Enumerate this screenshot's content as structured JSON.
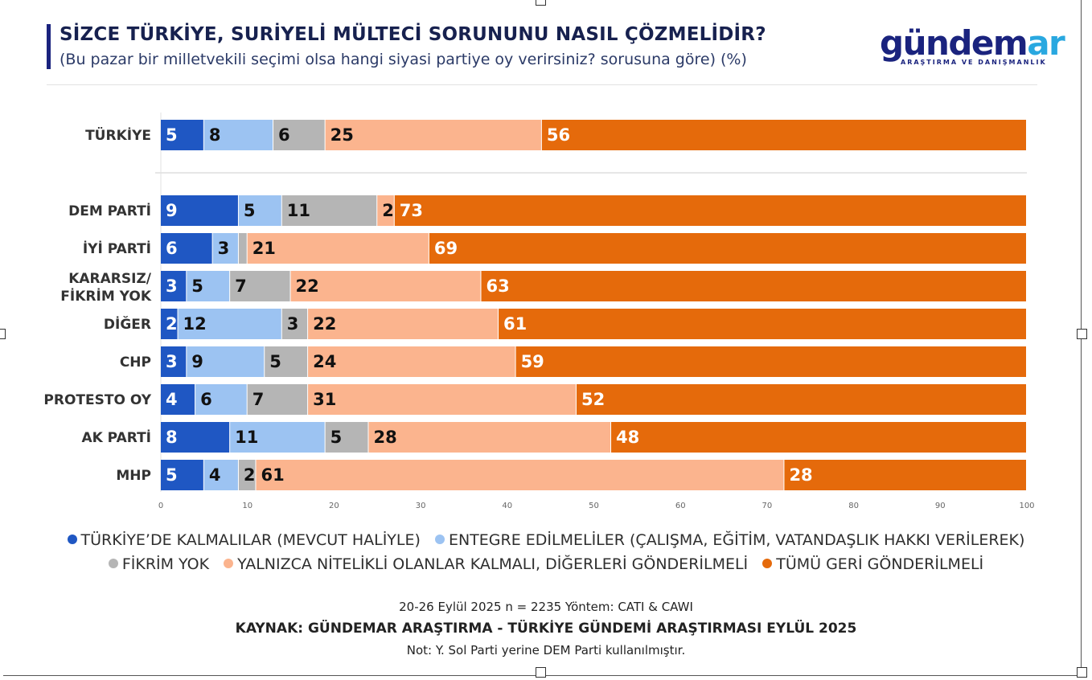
{
  "header": {
    "title": "SİZCE TÜRKİYE, SURİYELİ MÜLTECİ SORUNUNU NASIL ÇÖZMELİDİR?",
    "subtitle": "(Bu pazar bir milletvekili seçimi olsa hangi siyasi partiye oy verirsiniz? sorusuna göre) (%)"
  },
  "logo": {
    "word_part1": "gündem",
    "word_part2": "ar",
    "tagline": "ARAŞTIRMA VE DANIŞMANLIK"
  },
  "chart_data": {
    "type": "bar",
    "orientation": "horizontal",
    "stacked": true,
    "categories": [
      "TÜRKİYE",
      "DEM PARTİ",
      "İYİ PARTİ",
      "KARARSIZ/ FİKRİM YOK",
      "DİĞER",
      "CHP",
      "PROTESTO OY",
      "AK PARTİ",
      "MHP"
    ],
    "series": [
      {
        "name": "TÜRKİYE’DE KALMALILAR (MEVCUT HALİYLE)",
        "color": "#1f57c3",
        "label_color": "#ffffff",
        "values": [
          5,
          9,
          6,
          3,
          2,
          3,
          4,
          8,
          5
        ]
      },
      {
        "name": "ENTEGRE EDİLMELİLER (ÇALIŞMA, EĞİTİM, VATANDAŞLIK HAKKI VERİLEREK)",
        "color": "#9cc3f2",
        "label_color": "#111111",
        "values": [
          8,
          5,
          3,
          5,
          12,
          9,
          6,
          11,
          4
        ]
      },
      {
        "name": "FİKRİM YOK",
        "color": "#b5b5b5",
        "label_color": "#111111",
        "values": [
          6,
          11,
          1,
          7,
          3,
          5,
          7,
          5,
          2
        ]
      },
      {
        "name": "YALNIZCA NİTELİKLİ OLANLAR KALMALI, DİĞERLERİ GÖNDERİLMELİ",
        "color": "#fbb48e",
        "label_color": "#111111",
        "values": [
          25,
          2,
          21,
          22,
          22,
          24,
          31,
          28,
          61
        ]
      },
      {
        "name": "TÜMÜ GERİ GÖNDERİLMELİ",
        "color": "#e56a0b",
        "label_color": "#ffffff",
        "values": [
          56,
          73,
          69,
          63,
          61,
          59,
          52,
          48,
          28
        ]
      }
    ],
    "hidden_labels": [
      [
        2,
        2
      ]
    ],
    "x_ticks": [
      0,
      10,
      20,
      30,
      40,
      50,
      60,
      70,
      80,
      90,
      100
    ],
    "xlim": [
      0,
      100
    ],
    "xlabel": "",
    "ylabel": "",
    "legend_position": "bottom",
    "grid": false
  },
  "footer": {
    "method": "20-26 Eylül 2025 n = 2235 Yöntem: CATI & CAWI",
    "source": "KAYNAK: GÜNDEMAR ARAŞTIRMA - TÜRKİYE GÜNDEMİ ARAŞTIRMASI EYLÜL 2025",
    "note": "Not: Y. Sol Parti yerine DEM Parti kullanılmıştır."
  }
}
